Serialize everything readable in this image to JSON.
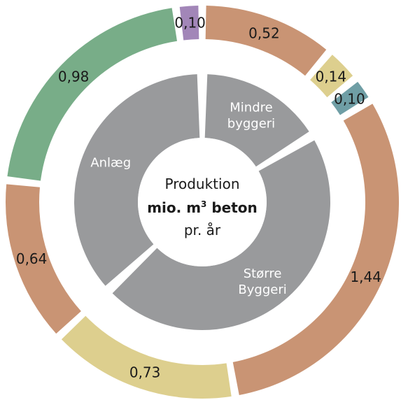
{
  "chart_data": {
    "type": "pie",
    "center_text": {
      "line1": "Produktion",
      "line2_prefix": "mio. m",
      "line2_sup": "3",
      "line2_suffix": " beton",
      "line3": "pr. år"
    },
    "inner_ring": [
      {
        "name": "Mindre byggeri",
        "lines": [
          "Mindre",
          "byggeri"
        ],
        "value": 0.76,
        "color": "#999a9c"
      },
      {
        "name": "Større Byggeri",
        "lines": [
          "Større",
          "Byggeri"
        ],
        "value": 2.17,
        "color": "#999a9c"
      },
      {
        "name": "Anlæg",
        "lines": [
          "Anlæg"
        ],
        "value": 1.72,
        "color": "#999a9c"
      }
    ],
    "outer_ring": [
      {
        "label": "0,52",
        "value": 0.52,
        "color": "#c99474",
        "group": "Mindre byggeri"
      },
      {
        "label": "0,14",
        "value": 0.14,
        "color": "#ddcf8e",
        "group": "Mindre byggeri"
      },
      {
        "label": "0,10",
        "value": 0.1,
        "color": "#6f9ea5",
        "group": "Mindre byggeri"
      },
      {
        "label": "1,44",
        "value": 1.44,
        "color": "#c99474",
        "group": "Større Byggeri"
      },
      {
        "label": "0,73",
        "value": 0.73,
        "color": "#ddcf8e",
        "group": "Større Byggeri"
      },
      {
        "label": "0,64",
        "value": 0.64,
        "color": "#c99474",
        "group": "Anlæg"
      },
      {
        "label": "0,98",
        "value": 0.98,
        "color": "#78ad88",
        "group": "Anlæg"
      },
      {
        "label": "0,10",
        "value": 0.1,
        "color": "#a286b8",
        "group": "Anlæg"
      }
    ]
  }
}
